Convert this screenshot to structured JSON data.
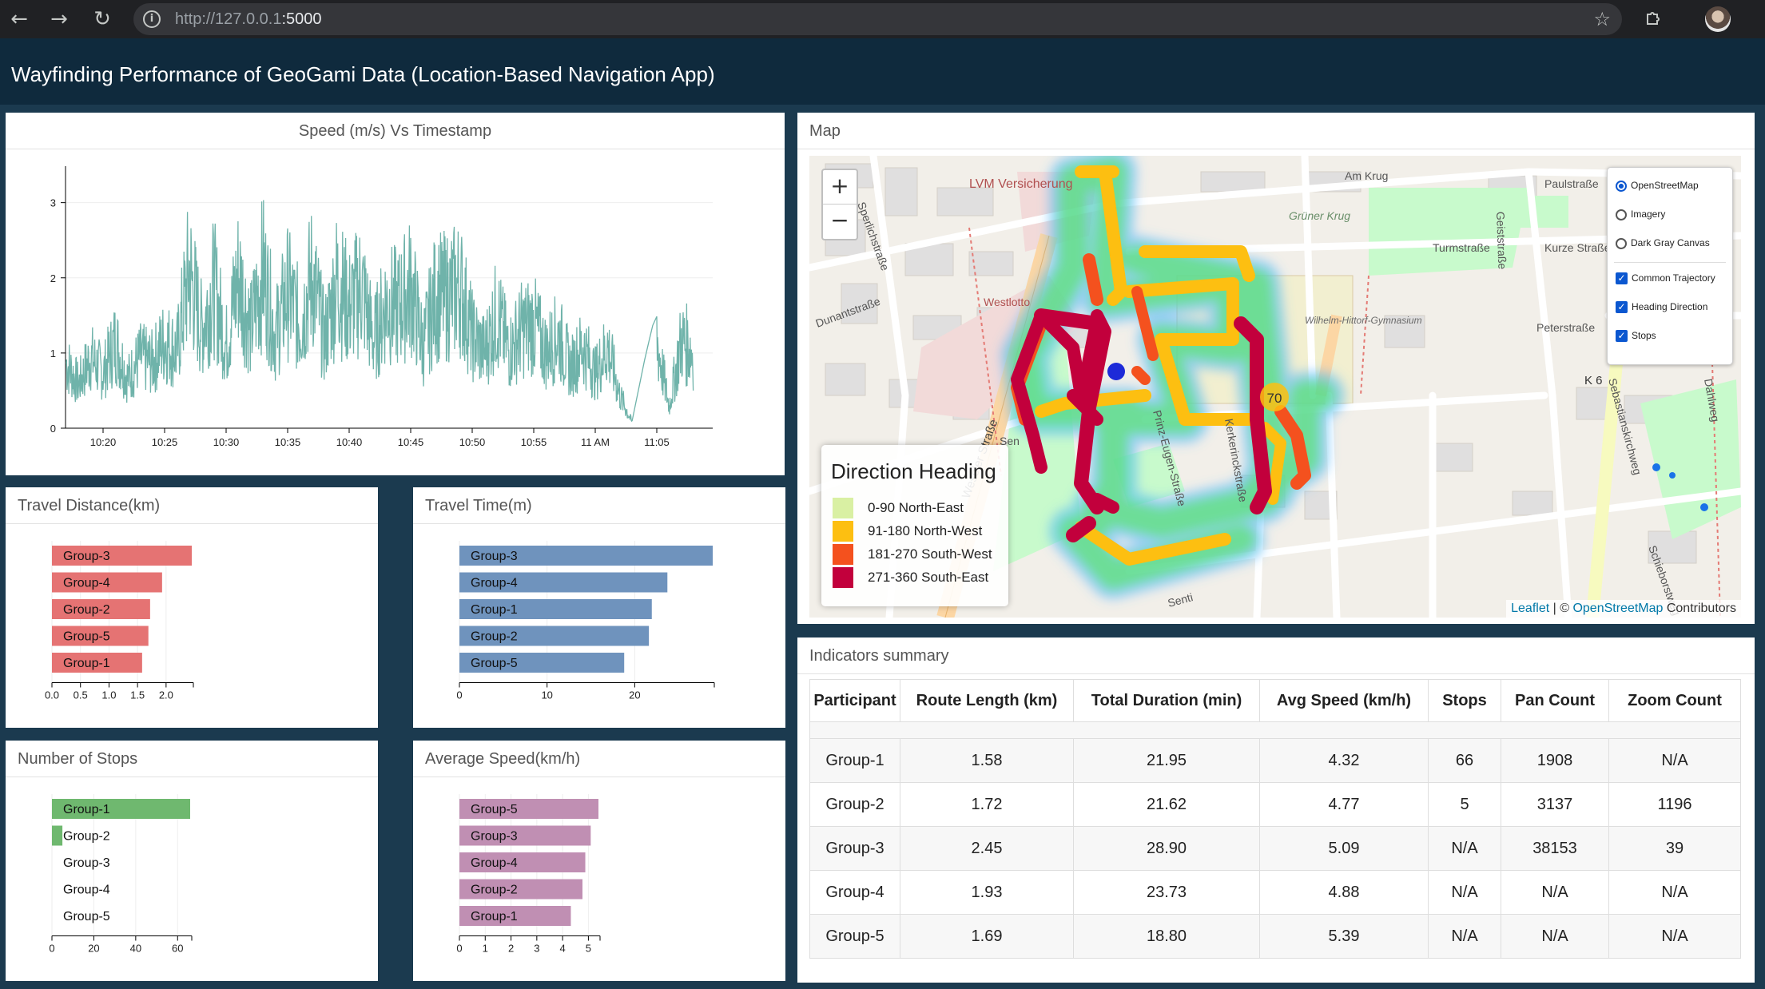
{
  "browser": {
    "url_host": "http://127.0.0.1",
    "url_port": ":5000"
  },
  "header": {
    "title": "Wayfinding Performance of GeoGami Data (Location-Based Navigation App)"
  },
  "speed_panel": {
    "title": "Speed (m/s) Vs Timestamp"
  },
  "travel_distance": {
    "title": "Travel Distance(km)"
  },
  "travel_time": {
    "title": "Travel Time(m)"
  },
  "stops_panel": {
    "title": "Number of Stops"
  },
  "avg_speed_panel": {
    "title": "Average Speed(km/h)"
  },
  "map": {
    "title": "Map",
    "zoom_in": "+",
    "zoom_out": "−",
    "layers": {
      "base": [
        {
          "label": "OpenStreetMap",
          "selected": true
        },
        {
          "label": "Imagery",
          "selected": false
        },
        {
          "label": "Dark Gray Canvas",
          "selected": false
        }
      ],
      "overlays": [
        {
          "label": "Common Trajectory",
          "checked": true
        },
        {
          "label": "Heading Direction",
          "checked": true
        },
        {
          "label": "Stops",
          "checked": true
        }
      ]
    },
    "legend": {
      "title": "Direction Heading",
      "items": [
        {
          "label": "0-90 North-East",
          "color": "#d9f0a3"
        },
        {
          "label": "91-180 North-West",
          "color": "#fdbf11"
        },
        {
          "label": "181-270 South-West",
          "color": "#f4511e"
        },
        {
          "label": "271-360 South-East",
          "color": "#c2003c"
        }
      ]
    },
    "street_labels": [
      "LVM Versicherung",
      "Am Krug",
      "Paulstraße",
      "Grüner Krug",
      "Turmstraße",
      "Kurze Straße",
      "Dunantstraße",
      "Sperlichstraße",
      "Westlotto",
      "Wilhelm-Hittorf-Gymnasium",
      "Peterstraße",
      "Geiststraße",
      "K 6",
      "Sebastianskirchweg",
      "Dahlweg",
      "Weseler Straße",
      "Sen",
      "Prinz-Eugen-Straße",
      "Kerkerinckstraße",
      "Schieborstweg",
      "Senti"
    ],
    "cluster_label": "70",
    "attribution": {
      "leaflet": "Leaflet",
      "sep": " | © ",
      "osm": "OpenStreetMap",
      "suffix": " Contributors"
    }
  },
  "indicators": {
    "title": "Indicators summary",
    "columns": [
      "Participant",
      "Route Length (km)",
      "Total Duration (min)",
      "Avg Speed (km/h)",
      "Stops",
      "Pan Count",
      "Zoom Count"
    ],
    "rows": [
      [
        "Group-1",
        "1.58",
        "21.95",
        "4.32",
        "66",
        "1908",
        "N/A"
      ],
      [
        "Group-2",
        "1.72",
        "21.62",
        "4.77",
        "5",
        "3137",
        "1196"
      ],
      [
        "Group-3",
        "2.45",
        "28.90",
        "5.09",
        "N/A",
        "38153",
        "39"
      ],
      [
        "Group-4",
        "1.93",
        "23.73",
        "4.88",
        "N/A",
        "N/A",
        "N/A"
      ],
      [
        "Group-5",
        "1.69",
        "18.80",
        "5.39",
        "N/A",
        "N/A",
        "N/A"
      ]
    ]
  },
  "colors": {
    "speed_line": "#6fb3aa",
    "distance_bar": "#e57373",
    "time_bar": "#6f93bd",
    "stops_bar": "#6fb86f",
    "avg_speed_bar": "#c08fb3"
  },
  "chart_data": [
    {
      "type": "line",
      "title": "Speed (m/s) Vs Timestamp",
      "x_tick_labels": [
        "10:20",
        "10:25",
        "10:30",
        "10:35",
        "10:40",
        "10:45",
        "10:50",
        "10:55",
        "11 AM",
        "11:05"
      ],
      "ylim": [
        0,
        3.4
      ],
      "y_ticks": [
        0,
        1,
        2,
        3
      ],
      "series": [
        {
          "x_minutes_after_10": [
            17,
            18,
            19,
            20,
            21,
            22,
            23,
            24,
            25,
            26,
            27,
            28,
            29,
            30,
            31,
            32,
            33,
            34,
            35,
            36,
            37,
            38,
            39,
            40,
            41,
            42,
            43,
            44,
            45,
            46,
            47,
            48,
            49,
            50,
            51,
            52,
            53,
            54,
            55,
            56,
            57,
            58,
            59,
            60,
            61,
            62,
            63,
            64,
            65,
            66,
            67,
            68
          ],
          "values": [
            1.2,
            0.8,
            1.3,
            1.0,
            1.6,
            0.9,
            1.3,
            1.2,
            1.6,
            1.4,
            2.9,
            1.8,
            2.6,
            1.5,
            2.8,
            1.8,
            2.9,
            1.7,
            2.5,
            1.9,
            2.8,
            1.6,
            2.7,
            2.2,
            2.6,
            1.6,
            2.3,
            2.2,
            2.6,
            1.5,
            2.4,
            2.4,
            2.6,
            1.7,
            1.4,
            2.1,
            1.4,
            1.8,
            1.9,
            1.4,
            1.7,
            1.1,
            1.5,
            1.0,
            1.5,
            0.6,
            0.1,
            0.9,
            1.6,
            0.4,
            1.6,
            1.4
          ]
        }
      ]
    },
    {
      "type": "bar",
      "title": "Travel Distance(km)",
      "categories": [
        "Group-3",
        "Group-4",
        "Group-2",
        "Group-5",
        "Group-1"
      ],
      "values": [
        2.45,
        1.93,
        1.72,
        1.69,
        1.58
      ],
      "x_ticks": [
        "0.0",
        "0.5",
        "1.0",
        "1.5",
        "2.0"
      ],
      "xlim": [
        0,
        2.45
      ]
    },
    {
      "type": "bar",
      "title": "Travel Time(m)",
      "categories": [
        "Group-3",
        "Group-4",
        "Group-1",
        "Group-2",
        "Group-5"
      ],
      "values": [
        28.9,
        23.73,
        21.95,
        21.62,
        18.8
      ],
      "x_ticks": [
        "0",
        "10",
        "20"
      ],
      "xlim": [
        0,
        28.9
      ]
    },
    {
      "type": "bar",
      "title": "Number of Stops",
      "categories": [
        "Group-1",
        "Group-2",
        "Group-3",
        "Group-4",
        "Group-5"
      ],
      "values": [
        66,
        5,
        0,
        0,
        0
      ],
      "x_ticks": [
        "0",
        "20",
        "40",
        "60"
      ],
      "xlim": [
        0,
        66
      ]
    },
    {
      "type": "bar",
      "title": "Average Speed(km/h)",
      "categories": [
        "Group-5",
        "Group-3",
        "Group-4",
        "Group-2",
        "Group-1"
      ],
      "values": [
        5.39,
        5.09,
        4.88,
        4.77,
        4.32
      ],
      "x_ticks": [
        "0",
        "1",
        "2",
        "3",
        "4",
        "5"
      ],
      "xlim": [
        0,
        5.39
      ]
    }
  ]
}
